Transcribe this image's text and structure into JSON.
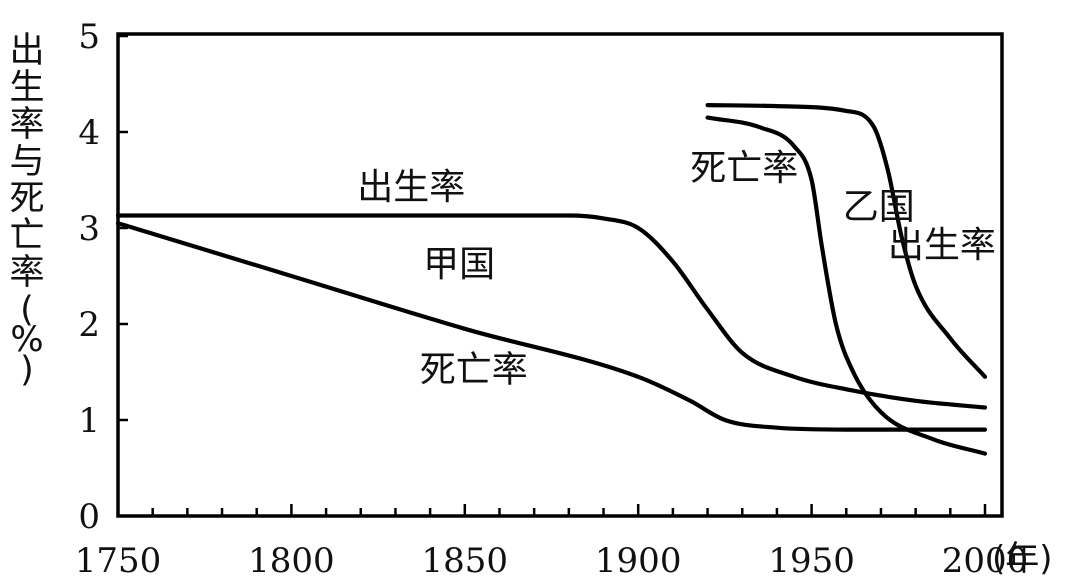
{
  "chart_data": {
    "type": "line",
    "ylabel": "出生率与死亡率(%)",
    "xunit": "(年)",
    "xlim": [
      1750,
      2005
    ],
    "ylim": [
      0,
      5
    ],
    "xticks": [
      {
        "value": 1750,
        "label": "1750"
      },
      {
        "value": 1800,
        "label": "1800"
      },
      {
        "value": 1850,
        "label": "1850"
      },
      {
        "value": 1900,
        "label": "1900"
      },
      {
        "value": 1950,
        "label": "1950"
      },
      {
        "value": 2000,
        "label": "2000"
      }
    ],
    "yticks": [
      {
        "value": 0,
        "label": "0"
      },
      {
        "value": 1,
        "label": "1"
      },
      {
        "value": 2,
        "label": "2"
      },
      {
        "value": 3,
        "label": "3"
      },
      {
        "value": 4,
        "label": "4"
      },
      {
        "value": 5,
        "label": "5"
      }
    ],
    "minor_xtick_step": 10,
    "series": [
      {
        "name": "甲国出生率",
        "country": "甲国",
        "rate": "出生率",
        "x": [
          1750,
          1880,
          1890,
          1900,
          1910,
          1920,
          1930,
          1945,
          1960,
          1980,
          2000
        ],
        "y": [
          3.13,
          3.13,
          3.1,
          3.0,
          2.65,
          2.15,
          1.7,
          1.45,
          1.32,
          1.2,
          1.13
        ]
      },
      {
        "name": "甲国死亡率",
        "country": "甲国",
        "rate": "死亡率",
        "x": [
          1750,
          1800,
          1850,
          1900,
          1915,
          1925,
          1940,
          1960,
          2000
        ],
        "y": [
          3.05,
          2.5,
          1.95,
          1.45,
          1.2,
          1.0,
          0.92,
          0.9,
          0.9
        ],
        "raw_y": [
          3.05,
          2.5,
          1.95,
          1.45,
          1.2,
          1.0,
          0.92,
          0.9,
          0.9
        ]
      },
      {
        "name": "乙国出生率",
        "country": "乙国",
        "rate": "出生率",
        "x": [
          1920,
          1940,
          1960,
          1968,
          1972,
          1976,
          1980,
          1990,
          2000
        ],
        "y": [
          4.28,
          4.27,
          4.22,
          4.05,
          3.6,
          2.9,
          2.4,
          1.85,
          1.45
        ]
      },
      {
        "name": "乙国死亡率",
        "country": "乙国",
        "rate": "死亡率",
        "x": [
          1920,
          1935,
          1945,
          1950,
          1953,
          1957,
          1962,
          1970,
          1985,
          2000
        ],
        "y": [
          4.15,
          4.05,
          3.85,
          3.5,
          2.8,
          2.0,
          1.5,
          1.08,
          0.8,
          0.65
        ]
      }
    ],
    "annotations": [
      {
        "text": "出生率",
        "x": 1819,
        "y": 3.3
      },
      {
        "text": "甲国",
        "x": 1838,
        "y": 2.5
      },
      {
        "text": "死亡率",
        "x": 1837,
        "y": 1.4
      },
      {
        "text": "死亡率",
        "x": 1915,
        "y": 3.5
      },
      {
        "text": "乙国",
        "x": 1959,
        "y": 3.1
      },
      {
        "text": "出生率",
        "x": 1972,
        "y": 2.7
      }
    ]
  }
}
